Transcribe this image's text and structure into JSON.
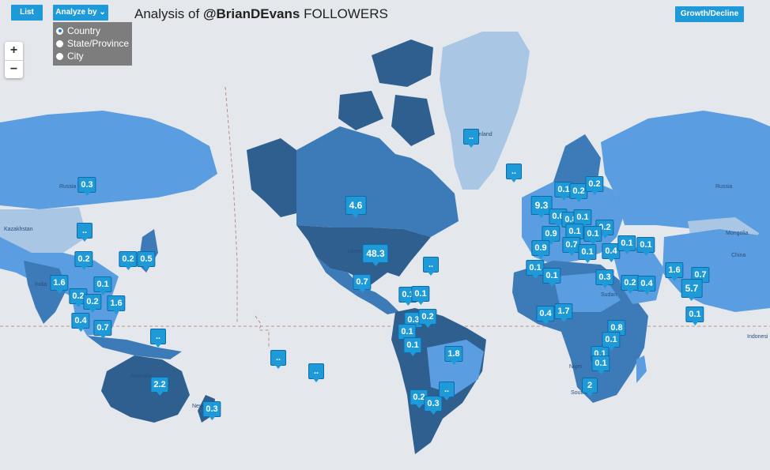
{
  "header": {
    "list_label": "List",
    "analyze_label": "Analyze by",
    "growth_label": "Growth/Decline",
    "title_prefix": "Analysis of ",
    "title_handle": "@BrianDEvans",
    "title_suffix": " FOLLOWERS"
  },
  "analyze_options": [
    {
      "label": "Country",
      "selected": true
    },
    {
      "label": "State/Province",
      "selected": false
    },
    {
      "label": "City",
      "selected": false
    }
  ],
  "zoom": {
    "in_label": "+",
    "out_label": "−"
  },
  "map_labels": {
    "russia_w": "Russia",
    "russia_e": "Russia",
    "kazakhstan": "Kazakhstan",
    "india": "India",
    "australia": "Australia",
    "new_zealand": "New Ze",
    "greenland": "Greenland",
    "mongolia": "Mongolia",
    "china": "China",
    "indonesia": "Indonesi",
    "united_states": "United",
    "sudan": "Sudan",
    "niger": "Niger",
    "south_africa": "South Af"
  },
  "markers": [
    {
      "v": "48.3",
      "region": "united-states"
    },
    {
      "v": "4.6",
      "region": "canada"
    },
    {
      "v": "0.7",
      "region": "mexico"
    },
    {
      "v": "..",
      "region": "greenland"
    },
    {
      "v": "..",
      "region": "iceland"
    },
    {
      "v": "0.3",
      "region": "russia-asia"
    },
    {
      "v": "..",
      "region": "kazakhstan"
    },
    {
      "v": "0.2",
      "region": "pakistan"
    },
    {
      "v": "0.2",
      "region": "south-korea"
    },
    {
      "v": "0.5",
      "region": "japan"
    },
    {
      "v": "1.6",
      "region": "india"
    },
    {
      "v": "0.2",
      "region": "bangladesh"
    },
    {
      "v": "0.1",
      "region": "thailand"
    },
    {
      "v": "0.2",
      "region": "vietnam"
    },
    {
      "v": "1.6",
      "region": "philippines"
    },
    {
      "v": "0.4",
      "region": "malaysia"
    },
    {
      "v": "0.7",
      "region": "indonesia-w"
    },
    {
      "v": "..",
      "region": "papua"
    },
    {
      "v": "2.2",
      "region": "australia"
    },
    {
      "v": "0.3",
      "region": "new-zealand"
    },
    {
      "v": "9.3",
      "region": "united-kingdom"
    },
    {
      "v": "0.1",
      "region": "norway"
    },
    {
      "v": "0.2",
      "region": "sweden"
    },
    {
      "v": "0.2",
      "region": "finland"
    },
    {
      "v": "0.6",
      "region": "denmark"
    },
    {
      "v": "0.8",
      "region": "germany"
    },
    {
      "v": "0.1",
      "region": "poland"
    },
    {
      "v": "0.2",
      "region": "belarus"
    },
    {
      "v": "0.9",
      "region": "france"
    },
    {
      "v": "0.1",
      "region": "switzerland"
    },
    {
      "v": "0.1",
      "region": "austria"
    },
    {
      "v": "0.9",
      "region": "spain"
    },
    {
      "v": "0.7",
      "region": "italy"
    },
    {
      "v": "0.1",
      "region": "greece"
    },
    {
      "v": "0.4",
      "region": "turkey"
    },
    {
      "v": "0.1",
      "region": "georgia"
    },
    {
      "v": "0.1",
      "region": "portugal"
    },
    {
      "v": "0.1",
      "region": "tunisia"
    },
    {
      "v": "0.3",
      "region": "iran"
    },
    {
      "v": "0.1",
      "region": "iraq"
    },
    {
      "v": "0.2",
      "region": "uae"
    },
    {
      "v": "0.4",
      "region": "afghanistan"
    },
    {
      "v": "1.6",
      "region": "china-south"
    },
    {
      "v": "0.7",
      "region": "china-east"
    },
    {
      "v": "5.7",
      "region": "hong-kong"
    },
    {
      "v": "0.1",
      "region": "taiwan"
    },
    {
      "v": "0.4",
      "region": "egypt"
    },
    {
      "v": "1.7",
      "region": "nigeria"
    },
    {
      "v": "0.8",
      "region": "kenya"
    },
    {
      "v": "0.1",
      "region": "tanzania"
    },
    {
      "v": "2",
      "region": "south-africa"
    },
    {
      "v": "0.1",
      "region": "zambia"
    },
    {
      "v": "0.1",
      "region": "angola"
    },
    {
      "v": "0.1",
      "region": "caribbean"
    },
    {
      "v": "0.1",
      "region": "puerto-rico"
    },
    {
      "v": "0.3",
      "region": "costa-rica"
    },
    {
      "v": "0.2",
      "region": "venezuela"
    },
    {
      "v": "0.1",
      "region": "colombia"
    },
    {
      "v": "0.1",
      "region": "peru"
    },
    {
      "v": "1.8",
      "region": "brazil"
    },
    {
      "v": "0.2",
      "region": "chile"
    },
    {
      "v": "0.3",
      "region": "argentina"
    },
    {
      "v": "..",
      "region": "uruguay"
    },
    {
      "v": "..",
      "region": "bermuda"
    },
    {
      "v": "..",
      "region": "fiji"
    },
    {
      "v": "..",
      "region": "tonga"
    }
  ],
  "colors": {
    "accent": "#1f9ad9",
    "ocean": "#e4e7ec",
    "land_dark": "#2f5f8f",
    "land_mid": "#3d7ab8",
    "land_light": "#5a9de0",
    "land_pale": "#a9c6e4"
  }
}
